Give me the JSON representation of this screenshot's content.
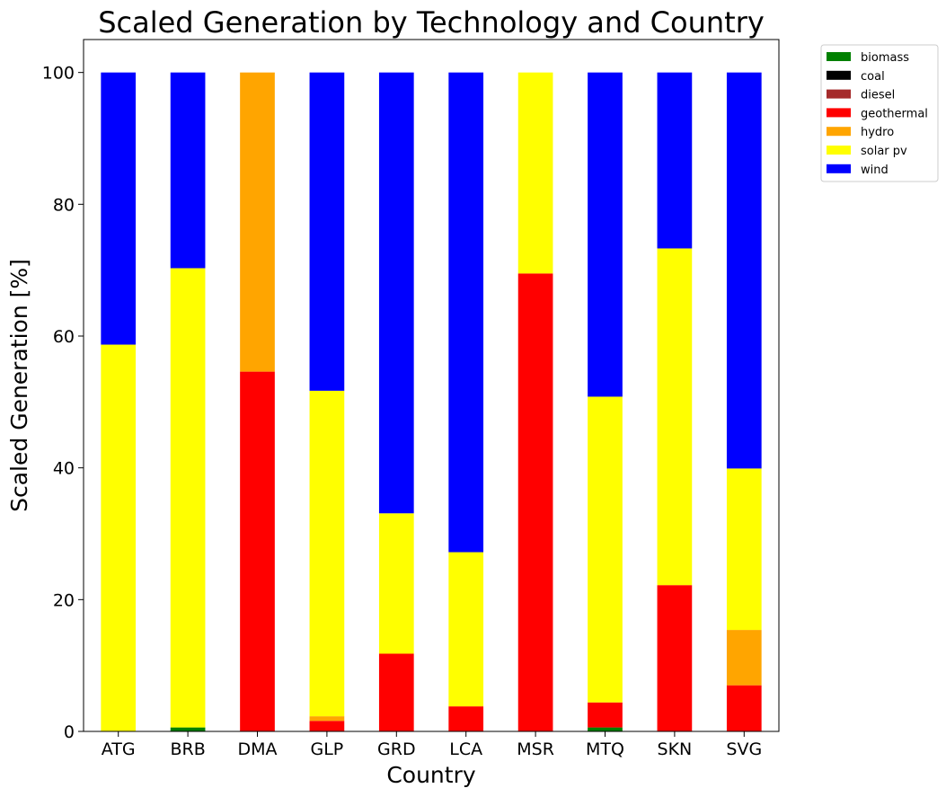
{
  "chart_data": {
    "type": "bar",
    "stacked": true,
    "title": "Scaled Generation by Technology and Country",
    "xlabel": "Country",
    "ylabel": "Scaled Generation [%]",
    "ylim": [
      0,
      105
    ],
    "yticks": [
      0,
      20,
      40,
      60,
      80,
      100
    ],
    "grid": false,
    "legend_position": "outside-top-right",
    "categories": [
      "ATG",
      "BRB",
      "DMA",
      "GLP",
      "GRD",
      "LCA",
      "MSR",
      "MTQ",
      "SKN",
      "SVG"
    ],
    "series": [
      {
        "name": "biomass",
        "color": "#008000",
        "values": [
          0,
          0.6,
          0,
          0,
          0,
          0,
          0,
          0.6,
          0,
          0
        ]
      },
      {
        "name": "coal",
        "color": "#000000",
        "values": [
          0,
          0,
          0,
          0,
          0,
          0,
          0,
          0,
          0,
          0
        ]
      },
      {
        "name": "diesel",
        "color": "#a52a2a",
        "values": [
          0,
          0,
          0,
          0,
          0,
          0,
          0,
          0,
          0,
          0
        ]
      },
      {
        "name": "geothermal",
        "color": "#ff0000",
        "values": [
          0,
          0,
          54.6,
          1.6,
          11.8,
          3.8,
          69.5,
          3.8,
          22.2,
          7.0
        ]
      },
      {
        "name": "hydro",
        "color": "#ffa500",
        "values": [
          0,
          0,
          45.4,
          0.7,
          0,
          0,
          0,
          0,
          0,
          8.4
        ]
      },
      {
        "name": "solar pv",
        "color": "#ffff00",
        "values": [
          58.7,
          69.7,
          0,
          49.4,
          21.3,
          23.4,
          30.5,
          46.4,
          51.1,
          24.5
        ]
      },
      {
        "name": "wind",
        "color": "#0000ff",
        "values": [
          41.3,
          29.7,
          0,
          48.3,
          66.9,
          72.8,
          0,
          49.2,
          26.7,
          60.1
        ]
      }
    ]
  }
}
